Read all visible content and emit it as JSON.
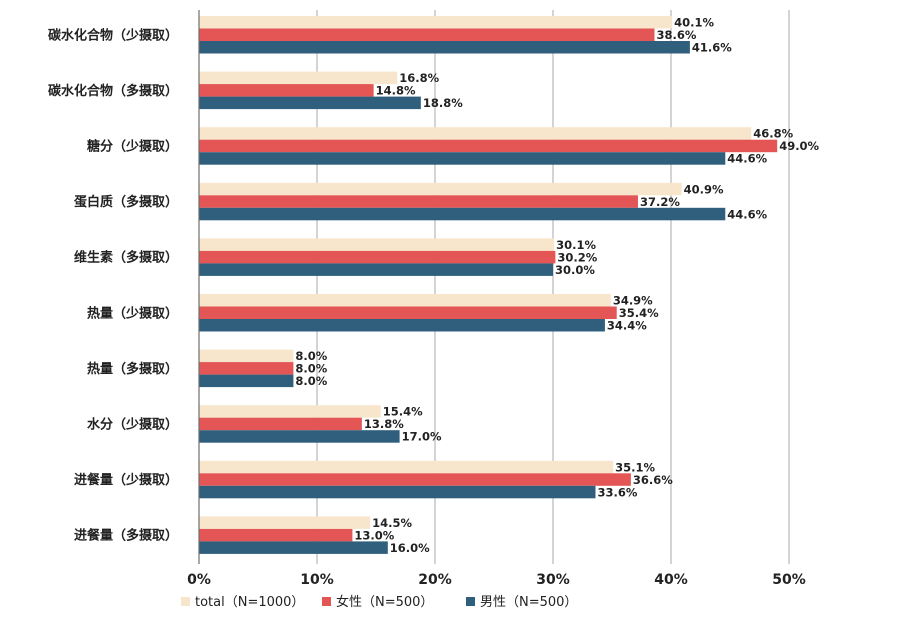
{
  "chart_data": {
    "type": "bar",
    "orientation": "horizontal",
    "categories": [
      "碳水化合物（少摄取）",
      "碳水化合物（多摄取）",
      "糖分（少摄取）",
      "蛋白质（多摄取）",
      "维生素（多摄取）",
      "热量（少摄取）",
      "热量（多摄取）",
      "水分（少摄取）",
      "进餐量（少摄取）",
      "进餐量（多摄取）"
    ],
    "series": [
      {
        "name": "total（N=1000）",
        "color": "#f8e6cc",
        "values": [
          40.1,
          16.8,
          46.8,
          40.9,
          30.1,
          34.9,
          8.0,
          15.4,
          35.1,
          14.5
        ]
      },
      {
        "name": "女性（N=500）",
        "color": "#e45555",
        "values": [
          38.6,
          14.8,
          49.0,
          37.2,
          30.2,
          35.4,
          8.0,
          13.8,
          36.6,
          13.0
        ]
      },
      {
        "name": "男性（N=500）",
        "color": "#2f5f7c",
        "values": [
          41.6,
          18.8,
          44.6,
          44.6,
          30.0,
          34.4,
          8.0,
          17.0,
          33.6,
          16.0
        ]
      }
    ],
    "xlim": [
      0,
      50
    ],
    "xticks": [
      0,
      10,
      20,
      30,
      40,
      50
    ],
    "xtick_labels": [
      "0%",
      "10%",
      "20%",
      "30%",
      "40%",
      "50%"
    ],
    "value_suffix": "%",
    "grid": "vertical",
    "legend_position": "bottom",
    "title": "",
    "xlabel": "",
    "ylabel": ""
  }
}
